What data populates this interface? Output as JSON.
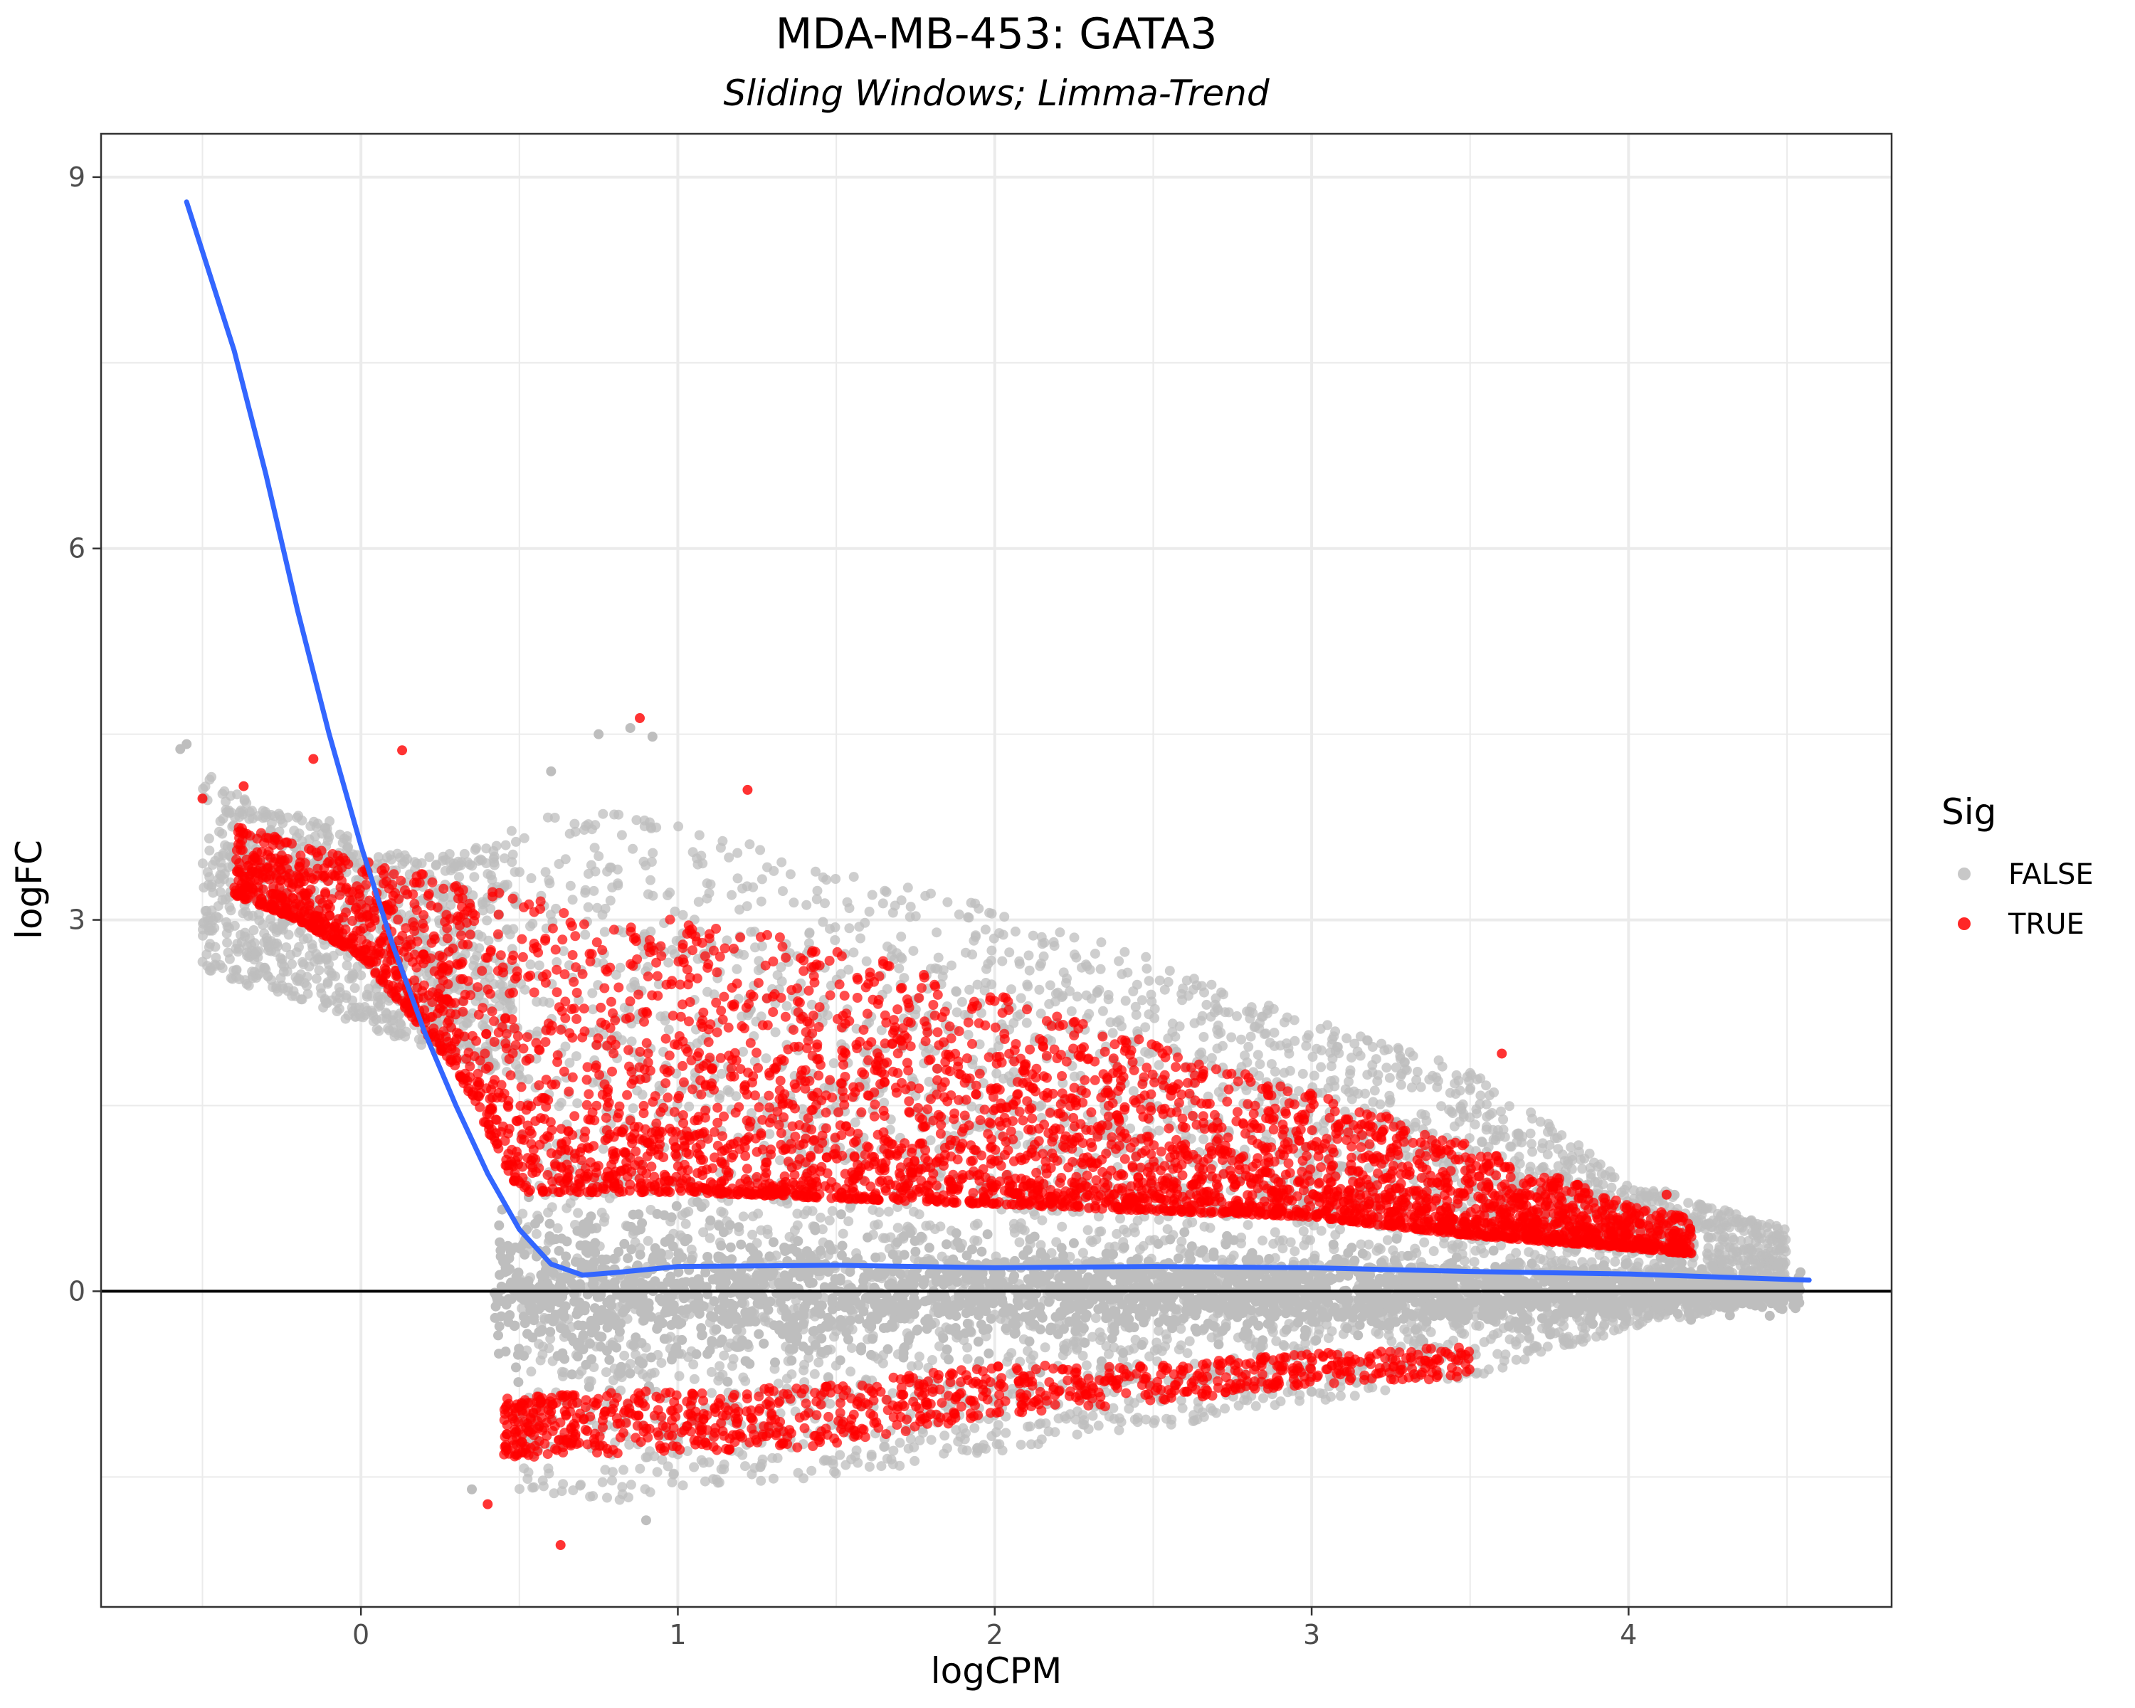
{
  "chart_data": {
    "type": "scatter",
    "title": "MDA-MB-453: GATA3",
    "subtitle": "Sliding Windows; Limma-Trend",
    "xlabel": "logCPM",
    "ylabel": "logFC",
    "xlim": [
      -0.82,
      4.83
    ],
    "ylim": [
      -2.55,
      9.35
    ],
    "x_ticks": [
      0,
      1,
      2,
      3,
      4
    ],
    "y_ticks": [
      0,
      3,
      6,
      9
    ],
    "x_tick_labels": [
      "0",
      "1",
      "2",
      "3",
      "4"
    ],
    "y_tick_labels": [
      "0",
      "3",
      "6",
      "9"
    ],
    "grid": true,
    "hline_y": 0,
    "legend": {
      "title": "Sig",
      "position": "right",
      "entries": [
        {
          "label": "FALSE",
          "color": "#bebebe"
        },
        {
          "label": "TRUE",
          "color": "#ff0000"
        }
      ]
    },
    "series": [
      {
        "name": "FALSE",
        "color": "#bebebe",
        "density_envelope": {
          "x": [
            -0.5,
            -0.3,
            -0.1,
            0.0,
            0.2,
            0.4,
            0.5,
            0.8,
            1.0,
            1.5,
            2.0,
            2.5,
            3.0,
            3.5,
            4.0,
            4.5
          ],
          "upper": [
            4.2,
            3.9,
            3.8,
            3.6,
            3.5,
            3.6,
            3.8,
            3.9,
            3.8,
            3.4,
            3.1,
            2.7,
            2.2,
            1.8,
            0.9,
            0.5
          ],
          "lower": [
            null,
            null,
            null,
            null,
            null,
            null,
            -1.6,
            -1.7,
            -1.6,
            -1.5,
            -1.3,
            -1.1,
            -0.9,
            -0.7,
            -0.3,
            -0.05
          ]
        },
        "outliers": [
          {
            "x": -0.57,
            "y": 4.38
          },
          {
            "x": -0.55,
            "y": 4.42
          },
          {
            "x": 0.75,
            "y": 4.5
          },
          {
            "x": 0.85,
            "y": 4.55
          },
          {
            "x": 0.92,
            "y": 4.48
          },
          {
            "x": 0.6,
            "y": 4.2
          },
          {
            "x": 0.9,
            "y": -1.85
          },
          {
            "x": 0.35,
            "y": -1.6
          }
        ]
      },
      {
        "name": "TRUE",
        "color": "#ff0000",
        "density_envelope": {
          "x_pos": [
            -0.4,
            -0.2,
            0.0,
            0.3,
            0.5,
            1.0,
            1.5,
            2.0,
            2.5,
            3.0,
            3.5,
            4.0,
            4.2
          ],
          "pos_upper": [
            3.8,
            3.6,
            3.5,
            3.3,
            3.2,
            3.0,
            2.8,
            2.4,
            2.0,
            1.6,
            1.2,
            0.7,
            0.6
          ],
          "pos_lower": [
            3.2,
            3.0,
            2.7,
            1.8,
            0.8,
            0.8,
            0.75,
            0.7,
            0.65,
            0.6,
            0.45,
            0.35,
            0.3
          ],
          "x_neg": [
            0.45,
            1.0,
            1.5,
            2.0,
            2.5,
            3.0,
            3.5
          ],
          "neg_upper": [
            -0.85,
            -0.8,
            -0.75,
            -0.6,
            -0.6,
            -0.5,
            -0.45
          ],
          "neg_lower": [
            -1.35,
            -1.3,
            -1.25,
            -1.0,
            -0.9,
            -0.75,
            -0.7
          ]
        },
        "highlights": [
          {
            "x": -0.5,
            "y": 3.98
          },
          {
            "x": -0.37,
            "y": 4.08
          },
          {
            "x": -0.15,
            "y": 4.3
          },
          {
            "x": 0.13,
            "y": 4.37
          },
          {
            "x": 0.88,
            "y": 4.63
          },
          {
            "x": 1.22,
            "y": 4.05
          },
          {
            "x": 0.4,
            "y": -1.72
          },
          {
            "x": 0.63,
            "y": -2.05
          },
          {
            "x": 3.6,
            "y": 1.92
          },
          {
            "x": 4.12,
            "y": 0.78
          }
        ]
      }
    ],
    "trend_line": {
      "color": "#3366ff",
      "x": [
        -0.55,
        -0.4,
        -0.3,
        -0.2,
        -0.1,
        0.0,
        0.1,
        0.2,
        0.3,
        0.4,
        0.5,
        0.6,
        0.7,
        0.8,
        1.0,
        1.5,
        2.0,
        2.5,
        3.0,
        3.5,
        4.0,
        4.57
      ],
      "y": [
        8.8,
        7.6,
        6.6,
        5.5,
        4.5,
        3.6,
        2.8,
        2.1,
        1.5,
        0.95,
        0.5,
        0.22,
        0.13,
        0.15,
        0.2,
        0.21,
        0.19,
        0.2,
        0.19,
        0.16,
        0.14,
        0.09
      ]
    }
  }
}
